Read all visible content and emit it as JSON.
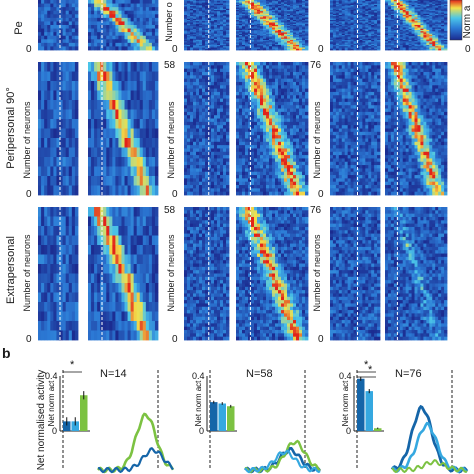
{
  "figure": {
    "panel_b_label": "b",
    "colorbar": {
      "label": "Norm a",
      "max_tick": "",
      "min_tick": "0"
    },
    "row_labels": [
      "Pe",
      "Peripersonal 90°",
      "Extrapersonal"
    ],
    "y_axis_label": "Number of neurons",
    "heatmap_ticks": {
      "col1": {
        "top": "",
        "zero": "0",
        "rows": [
          "",
          "",
          ""
        ]
      },
      "col2": {
        "rows": [
          "",
          "58",
          "58"
        ],
        "zero": "0"
      },
      "col3": {
        "rows": [
          "",
          "76",
          "76"
        ],
        "zero": "0"
      }
    },
    "line_y_label": "Net normalised activity",
    "inset_y_label": "Net norm act",
    "inset_ytick_top": "0.4",
    "inset_ytick_zero": "0"
  },
  "colors": {
    "heat_low": "#1b2a8f",
    "heat_mid": "#2c7bd6",
    "heat_cyan": "#4cc6e8",
    "heat_yellow": "#f2e14b",
    "heat_red": "#e2231a",
    "dark_blue": "#1565a8",
    "light_blue": "#35a8e0",
    "green": "#7cc242"
  },
  "chart_data": [
    {
      "type": "heatmap",
      "title": "",
      "ylabel": "Number of neurons",
      "panels": [
        {
          "row": "Pe",
          "col": 1,
          "n": null
        },
        {
          "row": "Pe",
          "col": 2,
          "n": null
        },
        {
          "row": "Pe",
          "col": 3,
          "n": null
        },
        {
          "row": "Peripersonal 90°",
          "col": 1,
          "n": null
        },
        {
          "row": "Peripersonal 90°",
          "col": 2,
          "n": 58
        },
        {
          "row": "Peripersonal 90°",
          "col": 3,
          "n": 76
        },
        {
          "row": "Extrapersonal",
          "col": 1,
          "n": null
        },
        {
          "row": "Extrapersonal",
          "col": 2,
          "n": 58
        },
        {
          "row": "Extrapersonal",
          "col": 3,
          "n": 76
        }
      ],
      "colorbar": {
        "label": "Norm a",
        "min": 0
      }
    },
    {
      "type": "line",
      "panels": [
        {
          "n_label": "N=14",
          "ylabel": "Net normalised activity",
          "inset": {
            "type": "bar",
            "ylim": [
              0,
              0.4
            ],
            "ylabel": "Net norm act",
            "values": [
              0.07,
              0.07,
              0.26
            ],
            "errors": [
              0.03,
              0.03,
              0.03
            ],
            "significance": [
              "*"
            ]
          }
        },
        {
          "n_label": "N=58",
          "inset": {
            "type": "bar",
            "ylim": [
              0,
              0.4
            ],
            "ylabel": "Net norm act",
            "values": [
              0.21,
              0.2,
              0.18
            ],
            "errors": [
              0.01,
              0.01,
              0.01
            ],
            "significance": []
          }
        },
        {
          "n_label": "N=76",
          "inset": {
            "type": "bar",
            "ylim": [
              0,
              0.4
            ],
            "ylabel": "Net norm act",
            "values": [
              0.38,
              0.29,
              0.02
            ],
            "errors": [
              0.015,
              0.015,
              0.005
            ],
            "significance": [
              "*",
              "*"
            ]
          }
        }
      ]
    }
  ]
}
